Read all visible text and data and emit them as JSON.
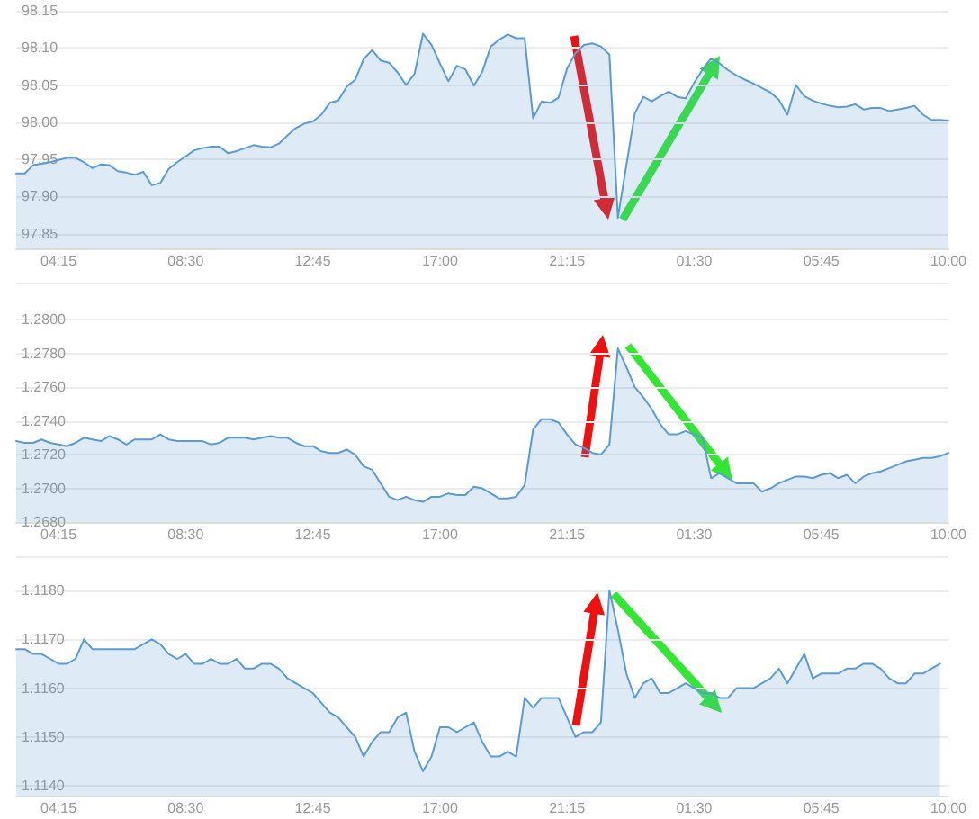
{
  "chart_data": [
    {
      "type": "area",
      "color": "#5b9bd5",
      "grid": "y",
      "ylim": [
        97.83,
        98.15
      ],
      "categories": [
        null,
        null,
        null,
        null,
        null,
        "04:15",
        null,
        null,
        null,
        null,
        null,
        null,
        null,
        null,
        null,
        null,
        null,
        null,
        null,
        null,
        "08:30",
        null,
        null,
        null,
        null,
        null,
        null,
        null,
        null,
        null,
        null,
        null,
        null,
        null,
        null,
        "12:45",
        null,
        null,
        null,
        null,
        null,
        null,
        null,
        null,
        null,
        null,
        null,
        null,
        null,
        null,
        "17:00",
        null,
        null,
        null,
        null,
        null,
        null,
        null,
        null,
        null,
        null,
        null,
        null,
        null,
        null,
        "21:15",
        null,
        null,
        null,
        null,
        null,
        null,
        null,
        null,
        null,
        null,
        null,
        null,
        null,
        null,
        "01:30",
        null,
        null,
        null,
        null,
        null,
        null,
        null,
        null,
        null,
        null,
        null,
        null,
        null,
        null,
        "05:45",
        null,
        null,
        null,
        null,
        null,
        null,
        null,
        null,
        null,
        null,
        null,
        null,
        null,
        null,
        "10:00"
      ],
      "yticks": [
        {
          "value": 97.85,
          "label": "97.85"
        },
        {
          "value": 97.9,
          "label": "97.90"
        },
        {
          "value": 97.95,
          "label": "97.95"
        },
        {
          "value": 98,
          "label": "98.00"
        },
        {
          "value": 98.05,
          "label": "98.05"
        },
        {
          "value": 98.1,
          "label": "98.10"
        },
        {
          "value": 98.15,
          "label": "98.15"
        }
      ],
      "values": [
        97.931,
        97.931,
        97.942,
        97.944,
        97.946,
        97.949,
        97.952,
        97.952,
        97.946,
        97.938,
        97.943,
        97.942,
        97.934,
        97.932,
        97.929,
        97.933,
        97.915,
        97.918,
        97.937,
        97.946,
        97.954,
        97.962,
        97.965,
        97.967,
        97.967,
        97.958,
        97.961,
        97.965,
        97.969,
        97.967,
        97.966,
        97.971,
        97.982,
        97.992,
        97.998,
        98.001,
        98.01,
        98.026,
        98.029,
        98.048,
        98.057,
        98.085,
        98.097,
        98.083,
        98.08,
        98.067,
        98.05,
        98.065,
        98.119,
        98.104,
        98.079,
        98.055,
        98.076,
        98.071,
        98.049,
        98.068,
        98.102,
        98.111,
        98.118,
        98.113,
        98.113,
        98.005,
        98.028,
        98.026,
        98.033,
        98.072,
        98.093,
        98.104,
        98.106,
        98.102,
        98.091,
        97.871,
        97.942,
        98.012,
        98.034,
        98.028,
        98.035,
        98.041,
        98.034,
        98.032,
        98.053,
        98.071,
        98.086,
        98.079,
        98.07,
        98.063,
        98.057,
        98.052,
        98.046,
        98.04,
        98.03,
        98.01,
        98.05,
        98.035,
        98.029,
        98.025,
        98.022,
        98.02,
        98.021,
        98.024,
        98.017,
        98.019,
        98.019,
        98.015,
        98.017,
        98.019,
        98.022,
        98.01,
        98.003,
        98.003,
        98.002
      ]
    },
    {
      "type": "area",
      "color": "#5b9bd5",
      "grid": "y",
      "ylim": [
        1.268,
        1.2822
      ],
      "categories": [
        null,
        null,
        null,
        null,
        null,
        "04:15",
        null,
        null,
        null,
        null,
        null,
        null,
        null,
        null,
        null,
        null,
        null,
        null,
        null,
        null,
        "08:30",
        null,
        null,
        null,
        null,
        null,
        null,
        null,
        null,
        null,
        null,
        null,
        null,
        null,
        null,
        "12:45",
        null,
        null,
        null,
        null,
        null,
        null,
        null,
        null,
        null,
        null,
        null,
        null,
        null,
        null,
        "17:00",
        null,
        null,
        null,
        null,
        null,
        null,
        null,
        null,
        null,
        null,
        null,
        null,
        null,
        null,
        "21:15",
        null,
        null,
        null,
        null,
        null,
        null,
        null,
        null,
        null,
        null,
        null,
        null,
        null,
        null,
        "01:30",
        null,
        null,
        null,
        null,
        null,
        null,
        null,
        null,
        null,
        null,
        null,
        null,
        null,
        null,
        "05:45",
        null,
        null,
        null,
        null,
        null,
        null,
        null,
        null,
        null,
        null,
        null,
        null,
        null,
        null,
        "10:00"
      ],
      "yticks": [
        {
          "value": 1.268,
          "label": "1.2680"
        },
        {
          "value": 1.27,
          "label": "1.2700"
        },
        {
          "value": 1.272,
          "label": "1.2720"
        },
        {
          "value": 1.274,
          "label": "1.2740"
        },
        {
          "value": 1.276,
          "label": "1.2760"
        },
        {
          "value": 1.278,
          "label": "1.2780"
        },
        {
          "value": 1.28,
          "label": "1.2800"
        },
        {
          "value": 1.2822,
          "label": null
        }
      ],
      "values": [
        1.2728,
        1.2727,
        1.2727,
        1.2729,
        1.2727,
        1.2726,
        1.2725,
        1.2727,
        1.273,
        1.2729,
        1.2728,
        1.2731,
        1.2729,
        1.2726,
        1.2729,
        1.2729,
        1.2729,
        1.2732,
        1.2729,
        1.2728,
        1.2728,
        1.2728,
        1.2728,
        1.2726,
        1.2727,
        1.273,
        1.273,
        1.273,
        1.2729,
        1.273,
        1.2731,
        1.273,
        1.273,
        1.2727,
        1.2725,
        1.2725,
        1.2722,
        1.2721,
        1.2721,
        1.2723,
        1.272,
        1.2713,
        1.2711,
        1.2703,
        1.2695,
        1.2693,
        1.2695,
        1.2693,
        1.2692,
        1.2695,
        1.2695,
        1.2697,
        1.2696,
        1.2696,
        1.2701,
        1.27,
        1.2697,
        1.2694,
        1.2694,
        1.2695,
        1.2702,
        1.2735,
        1.2741,
        1.2741,
        1.2739,
        1.2732,
        1.2726,
        1.2724,
        1.2721,
        1.272,
        1.2726,
        1.2783,
        1.2772,
        1.276,
        1.2754,
        1.2747,
        1.2738,
        1.2732,
        1.2732,
        1.2734,
        1.2732,
        1.273,
        1.2706,
        1.2709,
        1.2706,
        1.2703,
        1.2703,
        1.2703,
        1.2698,
        1.27,
        1.2703,
        1.2705,
        1.2707,
        1.2707,
        1.2706,
        1.2708,
        1.2709,
        1.2706,
        1.2708,
        1.2703,
        1.2707,
        1.2709,
        1.271,
        1.2712,
        1.2714,
        1.2716,
        1.2717,
        1.2718,
        1.2718,
        1.2719,
        1.2721
      ]
    },
    {
      "type": "area",
      "color": "#5b9bd5",
      "grid": "y",
      "ylim": [
        1.1138,
        1.1187
      ],
      "categories": [
        null,
        null,
        null,
        null,
        null,
        "04:15",
        null,
        null,
        null,
        null,
        null,
        null,
        null,
        null,
        null,
        null,
        null,
        null,
        null,
        null,
        "08:30",
        null,
        null,
        null,
        null,
        null,
        null,
        null,
        null,
        null,
        null,
        null,
        null,
        null,
        null,
        "12:45",
        null,
        null,
        null,
        null,
        null,
        null,
        null,
        null,
        null,
        null,
        null,
        null,
        null,
        null,
        "17:00",
        null,
        null,
        null,
        null,
        null,
        null,
        null,
        null,
        null,
        null,
        null,
        null,
        null,
        null,
        "21:15",
        null,
        null,
        null,
        null,
        null,
        null,
        null,
        null,
        null,
        null,
        null,
        null,
        null,
        null,
        "01:30",
        null,
        null,
        null,
        null,
        null,
        null,
        null,
        null,
        null,
        null,
        null,
        null,
        null,
        null,
        "05:45",
        null,
        null,
        null,
        null,
        null,
        null,
        null,
        null,
        null,
        null,
        null,
        null,
        null,
        null,
        "10:00"
      ],
      "yticks": [
        {
          "value": 1.114,
          "label": "1.1140"
        },
        {
          "value": 1.115,
          "label": "1.1150"
        },
        {
          "value": 1.116,
          "label": "1.1160"
        },
        {
          "value": 1.117,
          "label": "1.1170"
        },
        {
          "value": 1.118,
          "label": "1.1180"
        },
        {
          "value": 1.1187,
          "label": null
        }
      ],
      "values": [
        1.1168,
        1.1168,
        1.1167,
        1.1167,
        1.1166,
        1.1165,
        1.1165,
        1.1166,
        1.117,
        1.1168,
        1.1168,
        1.1168,
        1.1168,
        1.1168,
        1.1168,
        1.1169,
        1.117,
        1.1169,
        1.1167,
        1.1166,
        1.1167,
        1.1165,
        1.1165,
        1.1166,
        1.1165,
        1.1165,
        1.1166,
        1.1164,
        1.1164,
        1.1165,
        1.1165,
        1.1164,
        1.1162,
        1.1161,
        1.116,
        1.1159,
        1.1157,
        1.1155,
        1.1154,
        1.1152,
        1.115,
        1.1146,
        1.1149,
        1.1151,
        1.1151,
        1.1154,
        1.1155,
        1.1147,
        1.1143,
        1.1146,
        1.1152,
        1.1152,
        1.1151,
        1.1152,
        1.1153,
        1.1149,
        1.1146,
        1.1146,
        1.1147,
        1.1146,
        1.1158,
        1.1156,
        1.1158,
        1.1158,
        1.1158,
        1.1154,
        1.115,
        1.1151,
        1.1151,
        1.1153,
        1.118,
        1.1172,
        1.1163,
        1.1158,
        1.1161,
        1.1162,
        1.1159,
        1.1159,
        1.116,
        1.1161,
        1.116,
        1.1159,
        1.1159,
        1.1158,
        1.1158,
        1.116,
        1.116,
        1.116,
        1.1161,
        1.1162,
        1.1164,
        1.1161,
        1.1164,
        1.1167,
        1.1162,
        1.1163,
        1.1163,
        1.1163,
        1.1164,
        1.1164,
        1.1165,
        1.1165,
        1.1164,
        1.1162,
        1.1161,
        1.1161,
        1.1163,
        1.1163,
        1.1164,
        1.1165,
        null
      ]
    }
  ]
}
